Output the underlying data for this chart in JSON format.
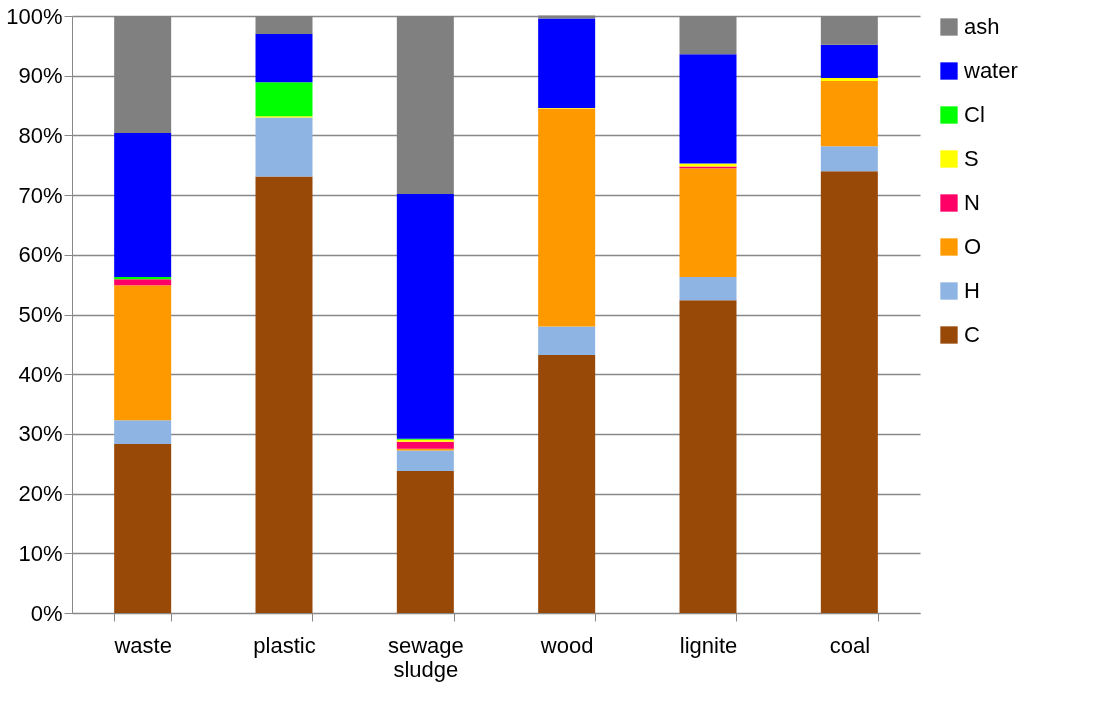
{
  "chart_data": {
    "type": "bar",
    "stacked": true,
    "categories": [
      "waste",
      "plastic",
      "sewage sludge",
      "wood",
      "lignite",
      "coal"
    ],
    "series": [
      {
        "name": "C",
        "color": "#984807",
        "values": [
          28.3,
          73.1,
          23.8,
          43.2,
          52.4,
          74.0
        ]
      },
      {
        "name": "H",
        "color": "#8eb4e3",
        "values": [
          4.0,
          9.9,
          3.4,
          4.8,
          3.9,
          4.2
        ]
      },
      {
        "name": "O",
        "color": "#ff9900",
        "values": [
          22.6,
          0,
          0.3,
          36.5,
          18.2,
          10.9
        ]
      },
      {
        "name": "N",
        "color": "#ff0066",
        "values": [
          1.0,
          0,
          1.2,
          0,
          0.3,
          0
        ]
      },
      {
        "name": "S",
        "color": "#ffff00",
        "values": [
          0,
          0.2,
          0.3,
          0.1,
          0.5,
          0.5
        ]
      },
      {
        "name": "Cl",
        "color": "#00ff00",
        "values": [
          0.4,
          5.7,
          0.2,
          0,
          0,
          0
        ]
      },
      {
        "name": "water",
        "color": "#0000ff",
        "values": [
          24.1,
          8.1,
          41.0,
          15.0,
          18.3,
          5.6
        ]
      },
      {
        "name": "ash",
        "color": "#808080",
        "values": [
          19.6,
          3.0,
          29.8,
          0.5,
          6.4,
          4.8
        ]
      }
    ],
    "ylim": [
      0,
      100
    ],
    "yticks": [
      {
        "value": 0,
        "label": "0%"
      },
      {
        "value": 10,
        "label": "10%"
      },
      {
        "value": 20,
        "label": "20%"
      },
      {
        "value": 30,
        "label": "30%"
      },
      {
        "value": 40,
        "label": "40%"
      },
      {
        "value": 50,
        "label": "50%"
      },
      {
        "value": 60,
        "label": "60%"
      },
      {
        "value": 70,
        "label": "70%"
      },
      {
        "value": 80,
        "label": "80%"
      },
      {
        "value": 90,
        "label": "90%"
      },
      {
        "value": 100,
        "label": "100%"
      }
    ],
    "grid": "y",
    "legend": "right"
  }
}
